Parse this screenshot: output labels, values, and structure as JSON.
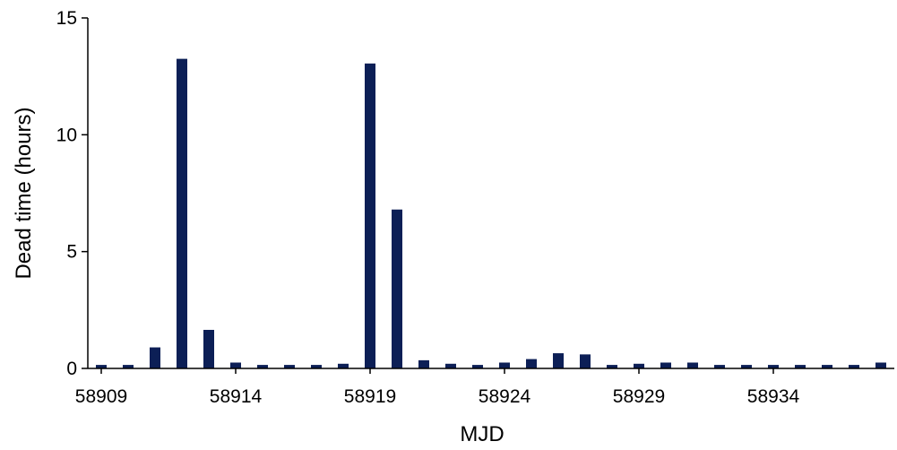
{
  "chart_data": {
    "type": "bar",
    "xlabel": "MJD",
    "ylabel": "Dead time (hours)",
    "x_tick_labels": [
      "58909",
      "58914",
      "58919",
      "58924",
      "58929",
      "58934"
    ],
    "x_tick_values": [
      58909,
      58914,
      58919,
      58924,
      58929,
      58934
    ],
    "y_tick_labels": [
      "0",
      "5",
      "10",
      "15"
    ],
    "y_tick_values": [
      0,
      5,
      10,
      15
    ],
    "ylim": [
      0,
      15
    ],
    "xlim": [
      58908.5,
      58938.5
    ],
    "grid": false,
    "bar_color": "#0c1f56",
    "x": [
      58909,
      58910,
      58911,
      58912,
      58913,
      58914,
      58915,
      58916,
      58917,
      58918,
      58919,
      58920,
      58921,
      58922,
      58923,
      58924,
      58925,
      58926,
      58927,
      58928,
      58929,
      58930,
      58931,
      58932,
      58933,
      58934,
      58935,
      58936,
      58937,
      58938
    ],
    "values": [
      0.15,
      0.15,
      0.9,
      13.25,
      1.65,
      0.25,
      0.15,
      0.15,
      0.15,
      0.2,
      13.05,
      6.8,
      0.35,
      0.2,
      0.15,
      0.25,
      0.4,
      0.65,
      0.6,
      0.15,
      0.2,
      0.25,
      0.25,
      0.15,
      0.15,
      0.15,
      0.15,
      0.15,
      0.15,
      0.25
    ]
  }
}
